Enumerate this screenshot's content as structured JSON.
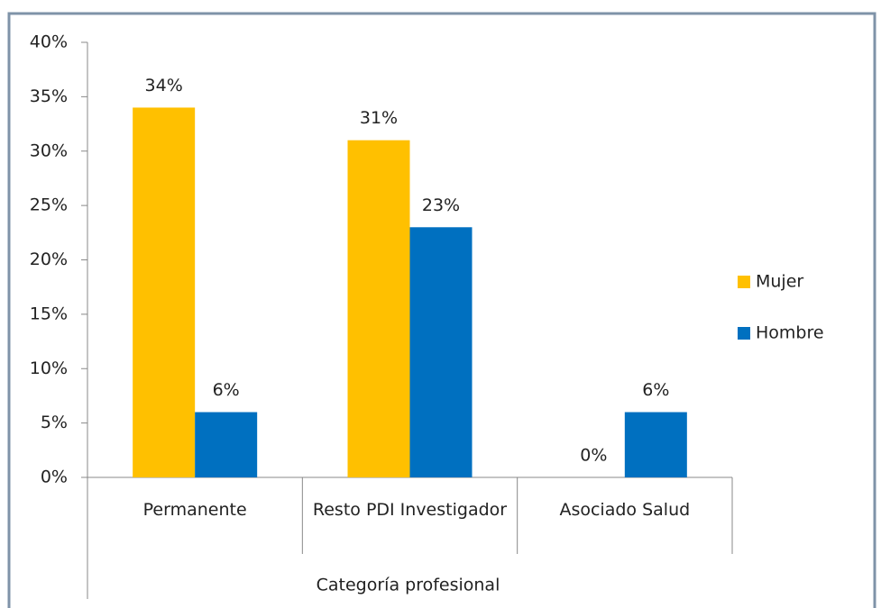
{
  "chart_data": {
    "type": "bar",
    "categories": [
      "Permanente",
      "Resto PDI Investigador",
      "Asociado Salud"
    ],
    "x_label": "Categoría profesional",
    "series": [
      {
        "name": "Mujer",
        "color": "#ffc000",
        "values": [
          34,
          31,
          0
        ],
        "value_labels": [
          "34%",
          "31%",
          "0%"
        ]
      },
      {
        "name": "Hombre",
        "color": "#0070c0",
        "values": [
          6,
          23,
          6
        ],
        "value_labels": [
          "6%",
          "23%",
          "6%"
        ]
      }
    ],
    "ylim": [
      0,
      40
    ],
    "yticks": [
      {
        "value": 0,
        "label": "0%"
      },
      {
        "value": 5,
        "label": "5%"
      },
      {
        "value": 10,
        "label": "10%"
      },
      {
        "value": 15,
        "label": "15%"
      },
      {
        "value": 20,
        "label": "20%"
      },
      {
        "value": 25,
        "label": "25%"
      },
      {
        "value": 30,
        "label": "30%"
      },
      {
        "value": 35,
        "label": "35%"
      },
      {
        "value": 40,
        "label": "40%"
      }
    ],
    "legend": "right"
  }
}
